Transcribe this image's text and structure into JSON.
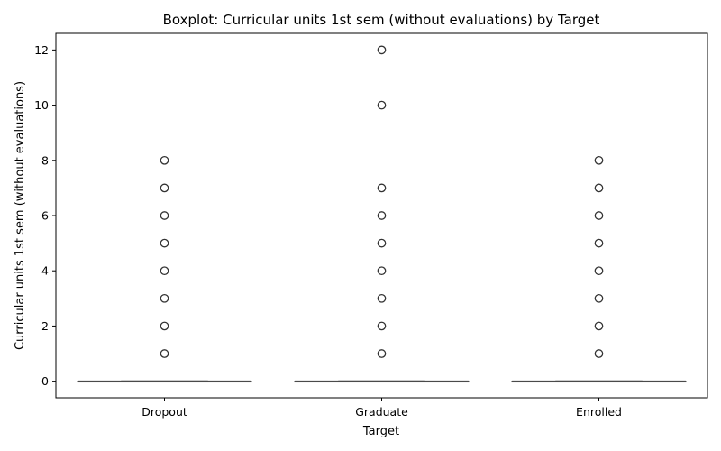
{
  "chart_data": {
    "type": "boxplot",
    "title": "Boxplot: Curricular units 1st sem (without evaluations) by Target",
    "xlabel": "Target",
    "ylabel": "Curricular units 1st sem (without evaluations)",
    "categories": [
      "Dropout",
      "Graduate",
      "Enrolled"
    ],
    "ylim": [
      -0.6,
      12.6
    ],
    "yticks": [
      0,
      2,
      4,
      6,
      8,
      10,
      12
    ],
    "grid": false,
    "colors": {
      "box_line": "#4a4a4a",
      "outlier": "#333333",
      "axis": "#000000"
    },
    "series": [
      {
        "category": "Dropout",
        "min": 0,
        "q1": 0,
        "median": 0,
        "q3": 0,
        "max": 0,
        "outliers": [
          1,
          2,
          3,
          4,
          5,
          6,
          7,
          8
        ]
      },
      {
        "category": "Graduate",
        "min": 0,
        "q1": 0,
        "median": 0,
        "q3": 0,
        "max": 0,
        "outliers": [
          1,
          2,
          3,
          4,
          5,
          6,
          7,
          10,
          12
        ]
      },
      {
        "category": "Enrolled",
        "min": 0,
        "q1": 0,
        "median": 0,
        "q3": 0,
        "max": 0,
        "outliers": [
          1,
          2,
          3,
          4,
          5,
          6,
          7,
          8
        ]
      }
    ]
  }
}
